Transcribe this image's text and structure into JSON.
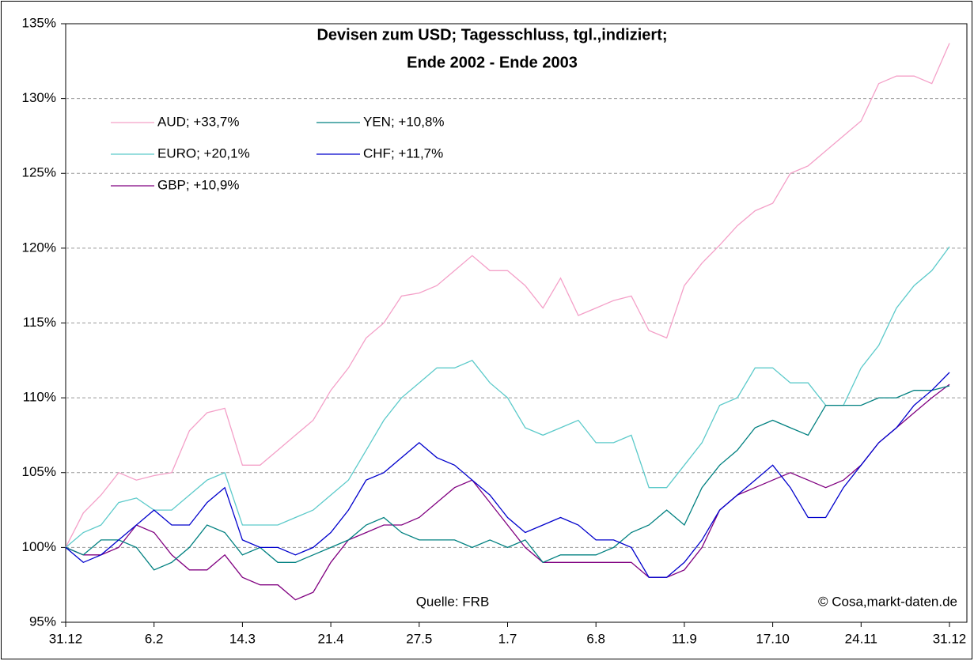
{
  "chart_data": {
    "type": "line",
    "title": "Devisen zum USD; Tagesschluss, tgl.,indiziert;",
    "subtitle": "Ende 2002 - Ende 2003",
    "annotations": [
      "Quelle: FRB",
      "© Cosa,markt-daten.de"
    ],
    "x": [
      0,
      5,
      10,
      15,
      20,
      25,
      30,
      35,
      40,
      45,
      50,
      55,
      60,
      65,
      70,
      75,
      80,
      85,
      90,
      95,
      100,
      105,
      110,
      115,
      120,
      125,
      130,
      135,
      140,
      145,
      150,
      155,
      160,
      165,
      170,
      175,
      180,
      185,
      190,
      195,
      200,
      205,
      210,
      215,
      220,
      225,
      230,
      235,
      240,
      245,
      250
    ],
    "xlim": [
      0,
      250
    ],
    "xticks": [
      {
        "value": 0,
        "label": "31.12"
      },
      {
        "value": 25,
        "label": "6.2"
      },
      {
        "value": 50,
        "label": "14.3"
      },
      {
        "value": 75,
        "label": "21.4"
      },
      {
        "value": 100,
        "label": "27.5"
      },
      {
        "value": 125,
        "label": "1.7"
      },
      {
        "value": 150,
        "label": "6.8"
      },
      {
        "value": 175,
        "label": "11.9"
      },
      {
        "value": 200,
        "label": "17.10"
      },
      {
        "value": 225,
        "label": "24.11"
      },
      {
        "value": 250,
        "label": "31.12"
      }
    ],
    "ylim": [
      95,
      135
    ],
    "yticks": [
      {
        "value": 95,
        "label": "95%"
      },
      {
        "value": 100,
        "label": "100%"
      },
      {
        "value": 105,
        "label": "105%"
      },
      {
        "value": 110,
        "label": "110%"
      },
      {
        "value": 115,
        "label": "115%"
      },
      {
        "value": 120,
        "label": "120%"
      },
      {
        "value": 125,
        "label": "125%"
      },
      {
        "value": 130,
        "label": "130%"
      },
      {
        "value": 135,
        "label": "135%"
      }
    ],
    "grid": true,
    "legend": "top-left",
    "series": [
      {
        "name": "AUD;  +33,7%",
        "color": "#f4a0c8",
        "values": [
          100,
          102.3,
          103.5,
          105,
          104.5,
          104.8,
          105,
          107.8,
          109,
          109.3,
          105.5,
          105.5,
          106.5,
          107.5,
          108.5,
          110.5,
          112,
          114,
          115,
          116.8,
          117,
          117.5,
          118.5,
          119.5,
          118.5,
          118.5,
          117.5,
          116,
          118,
          115.5,
          116,
          116.5,
          116.8,
          114.5,
          114,
          117.5,
          119,
          120.2,
          121.5,
          122.5,
          123,
          125,
          125.5,
          126.5,
          127.5,
          128.5,
          131,
          131.5,
          131.5,
          131,
          133.7
        ]
      },
      {
        "name": "EURO;  +20,1%",
        "color": "#5ccaca",
        "values": [
          100,
          101,
          101.5,
          103,
          103.3,
          102.5,
          102.5,
          103.5,
          104.5,
          105,
          101.5,
          101.5,
          101.5,
          102,
          102.5,
          103.5,
          104.5,
          106.5,
          108.5,
          110,
          111,
          112,
          112,
          112.5,
          111,
          110,
          108,
          107.5,
          108,
          108.5,
          107,
          107,
          107.5,
          104,
          104,
          105.5,
          107,
          109.5,
          110,
          112,
          112,
          111,
          111,
          109.5,
          109.5,
          112,
          113.5,
          116,
          117.5,
          118.5,
          120.1
        ]
      },
      {
        "name": "GBP;  +10,9%",
        "color": "#800080",
        "values": [
          100,
          99.5,
          99.5,
          100,
          101.5,
          101,
          99.5,
          98.5,
          98.5,
          99.5,
          98,
          97.5,
          97.5,
          96.5,
          97,
          99,
          100.5,
          101,
          101.5,
          101.5,
          102,
          103,
          104,
          104.5,
          103,
          101.5,
          100,
          99,
          99,
          99,
          99,
          99,
          99,
          98,
          98,
          98.5,
          100,
          102.5,
          103.5,
          104,
          104.5,
          105,
          104.5,
          104,
          104.5,
          105.5,
          107,
          108,
          109,
          110,
          110.9
        ]
      },
      {
        "name": "YEN;  +10,8%",
        "color": "#008080",
        "values": [
          100,
          99.5,
          100.5,
          100.5,
          100,
          98.5,
          99,
          100,
          101.5,
          101,
          99.5,
          100,
          99,
          99,
          99.5,
          100,
          100.5,
          101.5,
          102,
          101,
          100.5,
          100.5,
          100.5,
          100,
          100.5,
          100,
          100.5,
          99,
          99.5,
          99.5,
          99.5,
          100,
          101,
          101.5,
          102.5,
          101.5,
          104,
          105.5,
          106.5,
          108,
          108.5,
          108,
          107.5,
          109.5,
          109.5,
          109.5,
          110,
          110,
          110.5,
          110.5,
          110.8
        ]
      },
      {
        "name": "CHF;  +11,7%",
        "color": "#0000cc",
        "values": [
          100,
          99,
          99.5,
          100.5,
          101.5,
          102.5,
          101.5,
          101.5,
          103,
          104,
          100.5,
          100,
          100,
          99.5,
          100,
          101,
          102.5,
          104.5,
          105,
          106,
          107,
          106,
          105.5,
          104.5,
          103.5,
          102,
          101,
          101.5,
          102,
          101.5,
          100.5,
          100.5,
          100,
          98,
          98,
          99,
          100.5,
          102.5,
          103.5,
          104.5,
          105.5,
          104,
          102,
          102,
          104,
          105.5,
          107,
          108,
          109.5,
          110.5,
          111.7
        ]
      }
    ]
  }
}
